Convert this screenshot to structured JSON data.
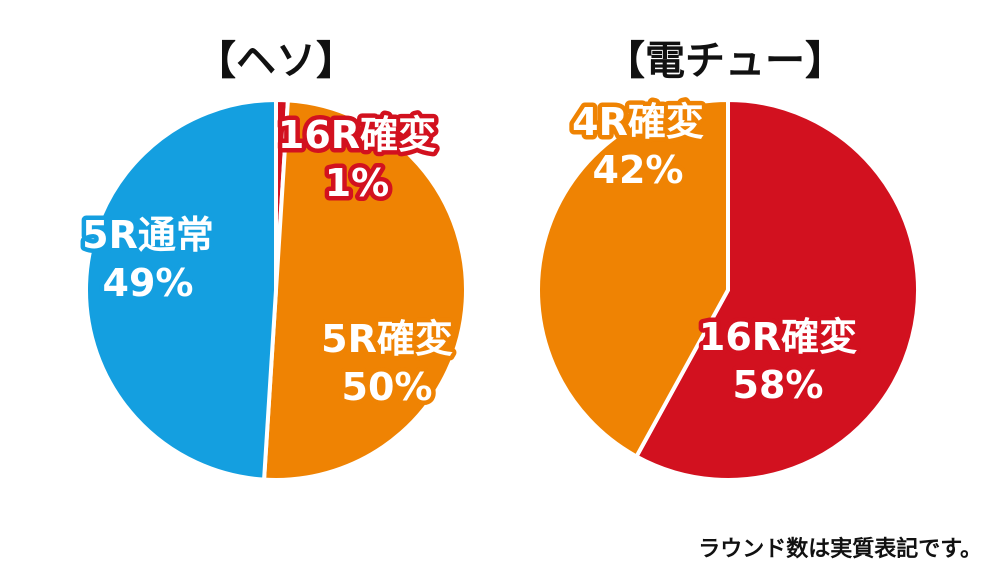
{
  "chart_data": [
    {
      "type": "pie",
      "title": "【ヘソ】",
      "slices": [
        {
          "label": "16R確変",
          "value": 1,
          "value_label": "1%",
          "color": "#d2111f"
        },
        {
          "label": "5R確変",
          "value": 50,
          "value_label": "50%",
          "color": "#ef8303"
        },
        {
          "label": "5R通常",
          "value": 49,
          "value_label": "49%",
          "color": "#149fe0"
        }
      ]
    },
    {
      "type": "pie",
      "title": "【電チュー】",
      "slices": [
        {
          "label": "16R確変",
          "value": 58,
          "value_label": "58%",
          "color": "#d2111f"
        },
        {
          "label": "4R確変",
          "value": 42,
          "value_label": "42%",
          "color": "#ef8303"
        }
      ]
    }
  ],
  "footnote": "ラウンド数は実質表記です。"
}
